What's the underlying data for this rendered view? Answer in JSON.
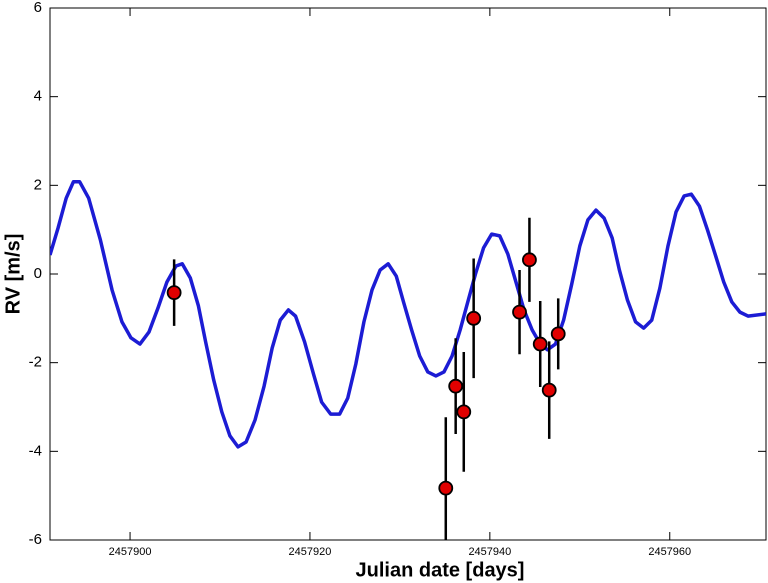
{
  "chart_data": {
    "type": "scatter",
    "xlabel": "Julian date [days]",
    "ylabel": "RV [m/s]",
    "xlim": [
      2457891.1,
      2457970.7
    ],
    "ylim": [
      -6,
      6
    ],
    "xticks": [
      2457900,
      2457920,
      2457940,
      2457960
    ],
    "yticks": [
      -6,
      -4,
      -2,
      0,
      2,
      4,
      6
    ],
    "series": [
      {
        "type": "line",
        "color": "#1c1cd4",
        "x": [
          2457891.1,
          2457892.0,
          2457892.9,
          2457893.7,
          2457894.4,
          2457895.4,
          2457896.7,
          2457898.0,
          2457899.1,
          2457900.1,
          2457901.1,
          2457902.1,
          2457903.1,
          2457904.1,
          2457905.1,
          2457905.8,
          2457906.7,
          2457907.6,
          2457908.4,
          2457909.3,
          2457910.2,
          2457911.1,
          2457912.0,
          2457912.9,
          2457913.9,
          2457914.9,
          2457915.8,
          2457916.7,
          2457917.6,
          2457918.4,
          2457919.4,
          2457920.4,
          2457921.3,
          2457922.3,
          2457923.3,
          2457924.2,
          2457925.1,
          2457926.0,
          2457926.9,
          2457927.8,
          2457928.7,
          2457929.6,
          2457930.4,
          2457931.3,
          2457932.2,
          2457933.1,
          2457934.0,
          2457934.9,
          2457935.8,
          2457936.7,
          2457937.6,
          2457938.4,
          2457939.3,
          2457940.2,
          2457941.1,
          2457942.0,
          2457942.9,
          2457943.8,
          2457944.7,
          2457945.6,
          2457946.4,
          2457947.3,
          2457948.2,
          2457949.1,
          2457950.0,
          2457950.9,
          2457951.8,
          2457952.7,
          2457953.6,
          2457954.4,
          2457955.3,
          2457956.2,
          2457957.1,
          2457958.0,
          2457958.9,
          2457959.8,
          2457960.7,
          2457961.6,
          2457962.4,
          2457963.3,
          2457964.2,
          2457965.1,
          2457966.0,
          2457966.9,
          2457967.8,
          2457968.7,
          2457970.7
        ],
        "values": [
          0.43,
          1.04,
          1.71,
          2.08,
          2.08,
          1.71,
          0.77,
          -0.36,
          -1.08,
          -1.44,
          -1.58,
          -1.31,
          -0.77,
          -0.18,
          0.18,
          0.23,
          -0.09,
          -0.72,
          -1.53,
          -2.39,
          -3.11,
          -3.65,
          -3.9,
          -3.79,
          -3.29,
          -2.53,
          -1.67,
          -1.04,
          -0.81,
          -0.95,
          -1.53,
          -2.26,
          -2.89,
          -3.16,
          -3.16,
          -2.8,
          -2.03,
          -1.08,
          -0.36,
          0.09,
          0.23,
          -0.05,
          -0.63,
          -1.26,
          -1.85,
          -2.21,
          -2.3,
          -2.21,
          -1.85,
          -1.26,
          -0.59,
          0.0,
          0.59,
          0.9,
          0.86,
          0.45,
          -0.18,
          -0.81,
          -1.26,
          -1.58,
          -1.71,
          -1.58,
          -1.04,
          -0.23,
          0.63,
          1.22,
          1.44,
          1.26,
          0.81,
          0.09,
          -0.59,
          -1.08,
          -1.22,
          -1.04,
          -0.32,
          0.63,
          1.4,
          1.76,
          1.8,
          1.53,
          0.99,
          0.41,
          -0.18,
          -0.63,
          -0.86,
          -0.95,
          -0.9
        ]
      },
      {
        "type": "scatter",
        "color": "#e00000",
        "x": [
          2457904.9,
          2457935.1,
          2457936.2,
          2457937.1,
          2457938.2,
          2457943.3,
          2457944.4,
          2457945.6,
          2457946.6,
          2457947.6
        ],
        "values": [
          -0.42,
          -4.83,
          -2.53,
          -3.11,
          -1.0,
          -0.86,
          0.32,
          -1.58,
          -2.62,
          -1.35
        ],
        "errors": [
          0.75,
          1.6,
          1.08,
          1.35,
          1.35,
          0.95,
          0.95,
          0.97,
          1.1,
          0.8
        ]
      }
    ]
  }
}
